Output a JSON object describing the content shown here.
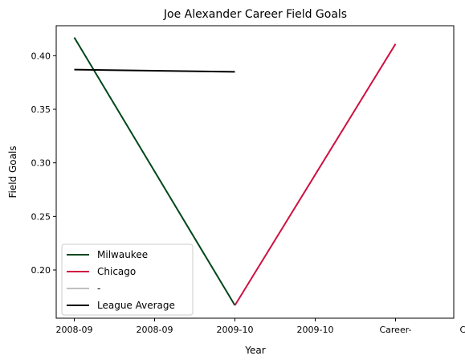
{
  "chart_data": {
    "type": "line",
    "title": "Joe Alexander Career Field Goals",
    "xlabel": "Year",
    "ylabel": "Field Goals",
    "x_tick_labels": [
      "2008-09",
      "2008-09",
      "2009-10",
      "2009-10",
      "Career-",
      "Career-"
    ],
    "y_ticks": [
      0.2,
      0.25,
      0.3,
      0.35,
      0.4
    ],
    "y_tick_labels": [
      "0.20",
      "0.25",
      "0.30",
      "0.35",
      "0.40"
    ],
    "ylim": [
      0.155,
      0.428
    ],
    "xlim": [
      -0.225,
      4.725
    ],
    "grid": false,
    "legend_position": "lower-left",
    "series": [
      {
        "name": "Milwaukee",
        "color": "#00471b",
        "points": [
          [
            0,
            0.417
          ],
          [
            2,
            0.167
          ]
        ]
      },
      {
        "name": "Chicago",
        "color": "#ce1141",
        "points": [
          [
            2,
            0.167
          ],
          [
            4,
            0.411
          ]
        ]
      },
      {
        "name": "-",
        "color": "#c0c0c0",
        "points": []
      },
      {
        "name": "League Average",
        "color": "#000000",
        "points": [
          [
            0,
            0.387
          ],
          [
            2,
            0.385
          ]
        ]
      }
    ]
  }
}
